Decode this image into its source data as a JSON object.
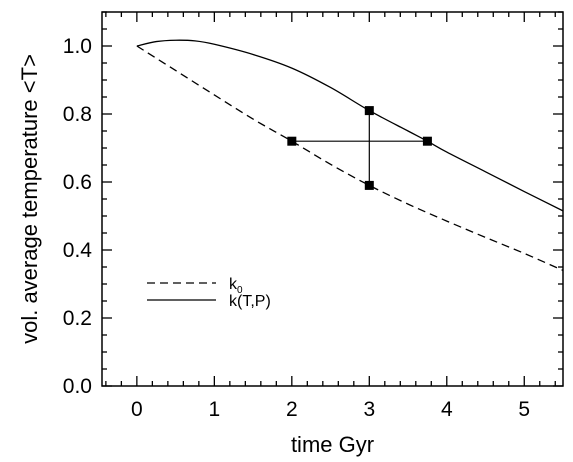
{
  "chart_data": {
    "type": "line",
    "title": "",
    "xlabel": "time Gyr",
    "ylabel": "vol. average temperature <T>",
    "xlim": [
      -0.45,
      5.5
    ],
    "ylim": [
      0.0,
      1.1
    ],
    "xticks": [
      0,
      1,
      2,
      3,
      4,
      5
    ],
    "xtick_labels": [
      "0",
      "1",
      "2",
      "3",
      "4",
      "5"
    ],
    "xminor_step": 0.2,
    "yticks": [
      0.0,
      0.2,
      0.4,
      0.6,
      0.8,
      1.0
    ],
    "ytick_labels": [
      "0.0",
      "0.2",
      "0.4",
      "0.6",
      "0.8",
      "1.0"
    ],
    "yminor_step": 0.05,
    "grid": false,
    "legend_position": "bottom-left",
    "series": [
      {
        "name": "k0",
        "label_main": "k",
        "label_sub": "0",
        "style": "dashed",
        "color": "#000000",
        "x": [
          0,
          0.5,
          1.0,
          1.5,
          2.0,
          2.5,
          3.0,
          3.5,
          4.0,
          4.5,
          5.0,
          5.5
        ],
        "y": [
          1.0,
          0.928,
          0.856,
          0.785,
          0.72,
          0.652,
          0.59,
          0.535,
          0.485,
          0.437,
          0.39,
          0.34
        ]
      },
      {
        "name": "k(T,P)",
        "label_main": "k(T,P)",
        "label_sub": "",
        "style": "solid",
        "color": "#000000",
        "x": [
          0,
          0.25,
          0.5,
          0.75,
          1.0,
          1.5,
          2.0,
          2.5,
          3.0,
          3.5,
          3.75,
          4.0,
          4.5,
          5.0,
          5.5
        ],
        "y": [
          1.0,
          1.013,
          1.017,
          1.015,
          1.005,
          0.975,
          0.935,
          0.878,
          0.81,
          0.75,
          0.72,
          0.688,
          0.63,
          0.572,
          0.515
        ]
      }
    ],
    "annotations": {
      "markers": [
        {
          "x": 2.0,
          "y": 0.72
        },
        {
          "x": 3.0,
          "y": 0.81
        },
        {
          "x": 3.0,
          "y": 0.59
        },
        {
          "x": 3.75,
          "y": 0.72
        }
      ],
      "lines": [
        {
          "x1": 2.0,
          "y1": 0.72,
          "x2": 3.75,
          "y2": 0.72
        },
        {
          "x1": 3.0,
          "y1": 0.59,
          "x2": 3.0,
          "y2": 0.81
        }
      ]
    }
  }
}
